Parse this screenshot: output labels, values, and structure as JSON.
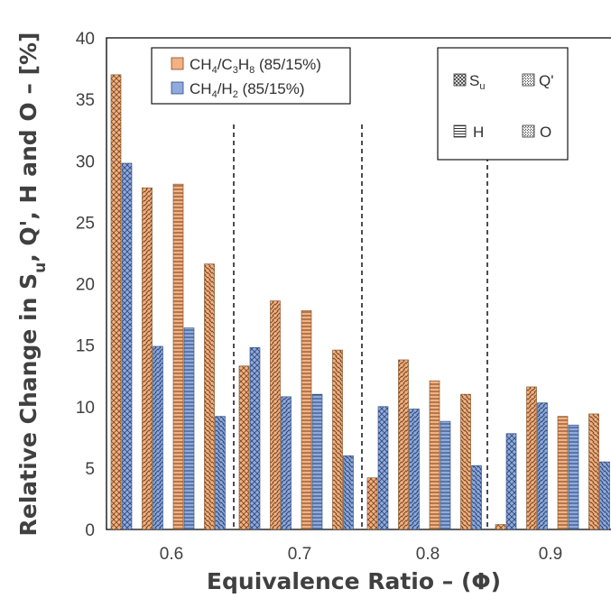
{
  "chart_data": {
    "type": "bar",
    "title": "",
    "xlabel": "Equivalence Ratio – (Φ)",
    "ylabel": [
      "Relative Change in S",
      "u",
      ", Q', H and O – [%]"
    ],
    "ylim": [
      0,
      40
    ],
    "yticks": [
      "0",
      "5",
      "10",
      "15",
      "20",
      "25",
      "30",
      "35",
      "40"
    ],
    "categories": [
      "0.6",
      "0.7",
      "0.8",
      "0.9"
    ],
    "group_order": [
      "Su",
      "Q'",
      "H",
      "O"
    ],
    "groups": [
      {
        "name": "0.6",
        "values": {
          "CH4/C3H8": [
            37.0,
            27.8,
            28.1,
            21.6
          ],
          "CH4/H2": [
            29.8,
            14.9,
            16.4,
            9.2
          ]
        }
      },
      {
        "name": "0.7",
        "values": {
          "CH4/C3H8": [
            13.3,
            18.6,
            17.8,
            14.6
          ],
          "CH4/H2": [
            14.8,
            10.8,
            11.0,
            6.0
          ]
        }
      },
      {
        "name": "0.8",
        "values": {
          "CH4/C3H8": [
            4.2,
            13.8,
            12.1,
            11.0
          ],
          "CH4/H2": [
            10.0,
            9.8,
            8.8,
            5.2
          ]
        }
      },
      {
        "name": "0.9",
        "values": {
          "CH4/C3H8": [
            0.4,
            11.6,
            9.2,
            9.4
          ],
          "CH4/H2": [
            7.8,
            10.3,
            8.5,
            5.5
          ]
        }
      }
    ],
    "series": [
      {
        "name_parts": [
          "CH",
          "4",
          "/C",
          "3",
          "H",
          "8",
          " (85/15%)"
        ],
        "color": "#F4B183"
      },
      {
        "name_parts": [
          "CH",
          "4",
          "/H",
          "2",
          " (85/15%)"
        ],
        "color": "#8FAADC"
      }
    ],
    "pattern_legend": [
      {
        "label": "S",
        "sub": "u",
        "pattern": "crosshatch"
      },
      {
        "label": "Q'",
        "sub": "",
        "pattern": "diag-down"
      },
      {
        "label": "H",
        "sub": "",
        "pattern": "horizontal"
      },
      {
        "label": "O",
        "sub": "",
        "pattern": "diag-up"
      }
    ],
    "grid": false,
    "legend_position": "top"
  }
}
